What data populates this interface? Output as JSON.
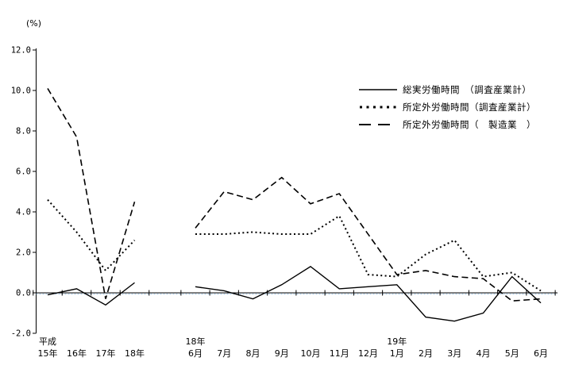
{
  "page": {
    "unit_label": "(%)"
  },
  "legend": {
    "items": [
      {
        "label": "総実労働時間　（調査産業計）",
        "style": "solid"
      },
      {
        "label": "所定外労働時間（調査産業計）",
        "style": "dotted"
      },
      {
        "label": "所定外労働時間（　製造業　）",
        "style": "dashed"
      }
    ]
  },
  "chart_data": {
    "type": "line",
    "title": "",
    "ylabel": "(%)",
    "ylim": [
      -2.0,
      12.0
    ],
    "y_ticks": [
      12.0,
      10.0,
      8.0,
      6.0,
      4.0,
      2.0,
      0.0,
      -2.0
    ],
    "grid": false,
    "legend_position": "upper-right-inside",
    "zero_line": true,
    "axis_color": "#000000",
    "zero_line_accent_color": "#9dc3e6",
    "line_color": "#000000",
    "groups": [
      {
        "name": "annual",
        "categories": [
          {
            "top": "平成",
            "bottom": "15年"
          },
          {
            "top": "",
            "bottom": "16年"
          },
          {
            "top": "",
            "bottom": "17年"
          },
          {
            "top": "",
            "bottom": "18年"
          }
        ]
      },
      {
        "name": "monthly",
        "categories": [
          {
            "top": "18年",
            "bottom": "6月"
          },
          {
            "top": "",
            "bottom": "7月"
          },
          {
            "top": "",
            "bottom": "8月"
          },
          {
            "top": "",
            "bottom": "9月"
          },
          {
            "top": "",
            "bottom": "10月"
          },
          {
            "top": "",
            "bottom": "11月"
          },
          {
            "top": "",
            "bottom": "12月"
          },
          {
            "top": "19年",
            "bottom": "1月"
          },
          {
            "top": "",
            "bottom": "2月"
          },
          {
            "top": "",
            "bottom": "3月"
          },
          {
            "top": "",
            "bottom": "4月"
          },
          {
            "top": "",
            "bottom": "5月"
          },
          {
            "top": "",
            "bottom": "6月"
          }
        ]
      }
    ],
    "series": [
      {
        "name": "総実労働時間（調査産業計）",
        "style": "solid",
        "annual": [
          -0.1,
          0.2,
          -0.6,
          0.5
        ],
        "monthly": [
          0.3,
          0.1,
          -0.3,
          0.4,
          1.3,
          0.2,
          0.3,
          0.4,
          -1.2,
          -1.4,
          -1.0,
          0.8,
          -0.5
        ]
      },
      {
        "name": "所定外労働時間（調査産業計）",
        "style": "dotted",
        "annual": [
          4.6,
          3.0,
          1.1,
          2.6
        ],
        "monthly": [
          2.9,
          2.9,
          3.0,
          2.9,
          2.9,
          3.8,
          0.9,
          0.8,
          1.9,
          2.6,
          0.8,
          1.0,
          0.1
        ]
      },
      {
        "name": "所定外労働時間（製造業）",
        "style": "dashed",
        "annual": [
          10.1,
          7.7,
          -0.3,
          4.5
        ],
        "monthly": [
          3.2,
          5.0,
          4.6,
          5.7,
          4.4,
          4.9,
          2.9,
          0.9,
          1.1,
          0.8,
          0.7,
          -0.4,
          -0.3
        ]
      }
    ]
  }
}
